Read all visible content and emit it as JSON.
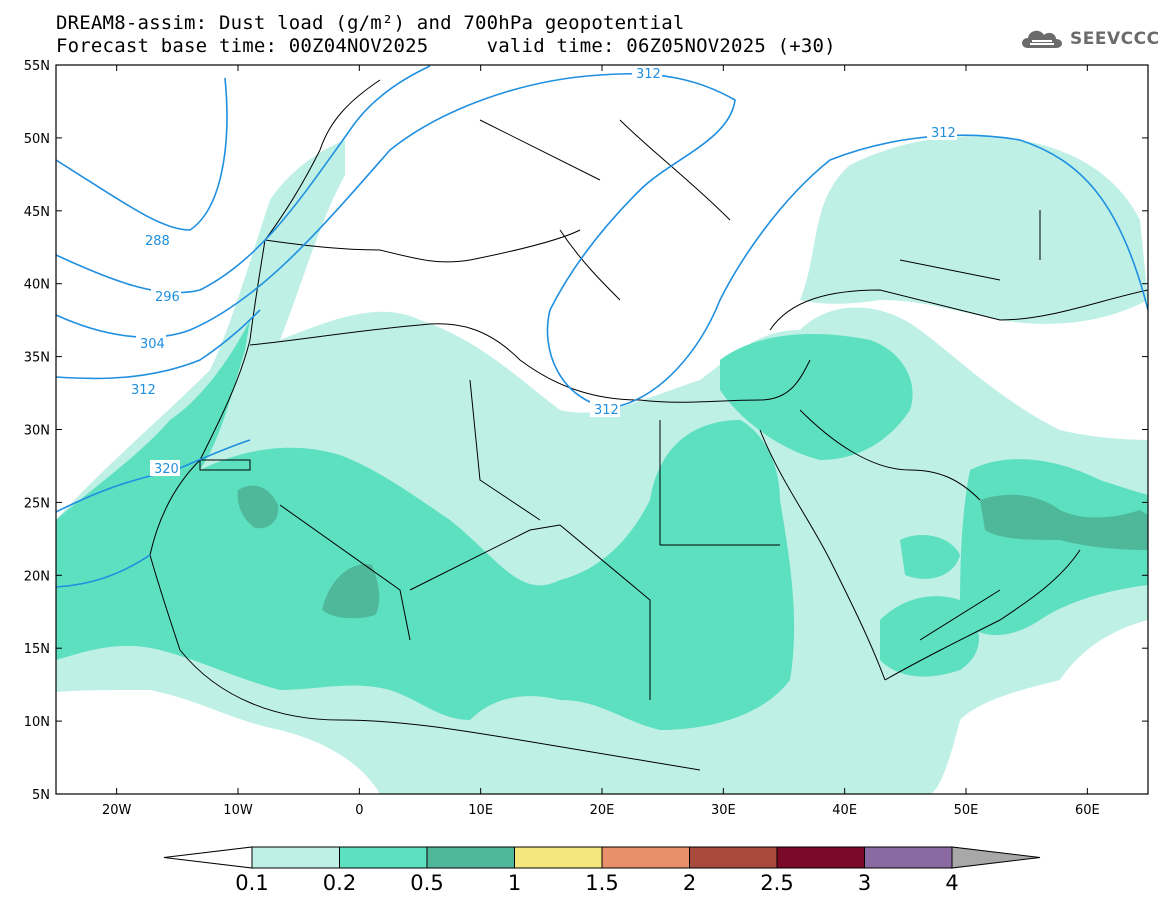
{
  "header": {
    "title_line1": "DREAM8-assim: Dust load (g/m²) and 700hPa geopotential",
    "title_line2": "Forecast base time: 00Z04NOV2025     valid time: 06Z05NOV2025 (+30)",
    "logo_text": "SEEVCCC",
    "logo_icon": "cloud-icon"
  },
  "map": {
    "lon_range": [
      -25,
      65
    ],
    "lat_range": [
      5,
      55
    ],
    "lat_ticks": [
      {
        "value": 55,
        "label": "55N"
      },
      {
        "value": 50,
        "label": "50N"
      },
      {
        "value": 45,
        "label": "45N"
      },
      {
        "value": 40,
        "label": "40N"
      },
      {
        "value": 35,
        "label": "35N"
      },
      {
        "value": 30,
        "label": "30N"
      },
      {
        "value": 25,
        "label": "25N"
      },
      {
        "value": 20,
        "label": "20N"
      },
      {
        "value": 15,
        "label": "15N"
      },
      {
        "value": 10,
        "label": "10N"
      },
      {
        "value": 5,
        "label": "5N"
      }
    ],
    "lon_ticks": [
      {
        "value": -20,
        "label": "20W"
      },
      {
        "value": -10,
        "label": "10W"
      },
      {
        "value": 0,
        "label": "0"
      },
      {
        "value": 10,
        "label": "10E"
      },
      {
        "value": 20,
        "label": "20E"
      },
      {
        "value": 30,
        "label": "30E"
      },
      {
        "value": 40,
        "label": "40E"
      },
      {
        "value": 50,
        "label": "50E"
      },
      {
        "value": 60,
        "label": "60E"
      }
    ],
    "contour_color": "#1f8fe0",
    "contour_labels": [
      "288",
      "296",
      "304",
      "312",
      "320",
      "312",
      "312",
      "312"
    ]
  },
  "colorbar": {
    "labels": [
      "0.1",
      "0.2",
      "0.5",
      "1",
      "1.5",
      "2",
      "2.5",
      "3",
      "4"
    ],
    "colors": [
      "#ffffff",
      "#bff0e6",
      "#5de0c0",
      "#4fb89a",
      "#f4e77e",
      "#e8906a",
      "#a84a3e",
      "#7a0a28",
      "#8a6aa0",
      "#a8a8a8"
    ]
  }
}
